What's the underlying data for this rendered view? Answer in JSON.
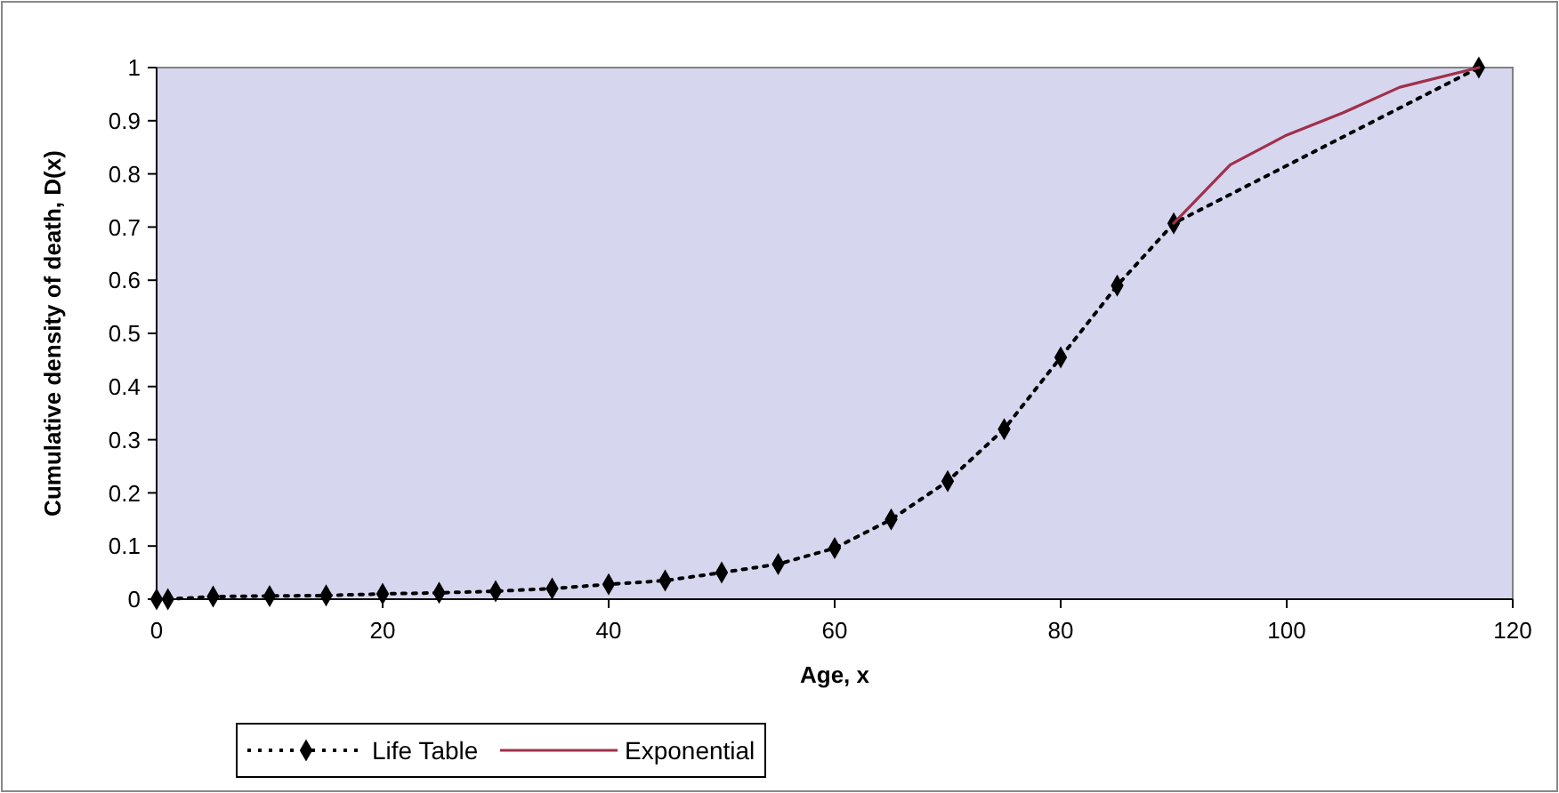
{
  "chart_data": {
    "type": "line",
    "xlabel": "Age, x",
    "ylabel": "Cumulative density of death, D(x)",
    "xlim": [
      0,
      120
    ],
    "xticks": [
      0,
      20,
      40,
      60,
      80,
      100,
      120
    ],
    "ylim": [
      0,
      1
    ],
    "yticks": [
      0,
      0.1,
      0.2,
      0.3,
      0.4,
      0.5,
      0.6,
      0.7,
      0.8,
      0.9,
      1
    ],
    "legend": "bottom left",
    "grid": false,
    "series": [
      {
        "name": "Life Table",
        "color": "#000000",
        "marker": "diamond",
        "line_style": "dotted",
        "x": [
          0,
          1,
          5,
          10,
          15,
          20,
          25,
          30,
          35,
          40,
          45,
          50,
          55,
          60,
          65,
          70,
          75,
          80,
          85,
          90,
          117
        ],
        "values": [
          0,
          0,
          0.005,
          0.006,
          0.007,
          0.01,
          0.012,
          0.015,
          0.02,
          0.028,
          0.035,
          0.05,
          0.066,
          0.096,
          0.15,
          0.222,
          0.32,
          0.455,
          0.59,
          0.707,
          1
        ]
      },
      {
        "name": "Exponential",
        "color": "#a0304a",
        "marker": "none",
        "line_style": "solid",
        "x": [
          90,
          95,
          100,
          105,
          110,
          117
        ],
        "values": [
          0.707,
          0.817,
          0.873,
          0.915,
          0.963,
          1
        ]
      }
    ]
  }
}
